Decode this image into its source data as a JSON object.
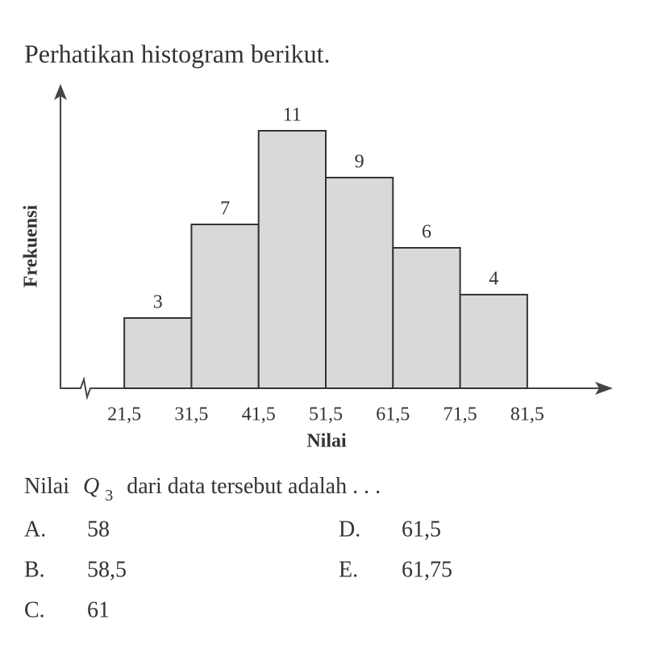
{
  "intro": "Perhatikan histogram berikut.",
  "chart_data": {
    "type": "histogram",
    "xlabel": "Nilai",
    "ylabel": "Frekuensi",
    "bins": [
      21.5,
      31.5,
      41.5,
      51.5,
      61.5,
      71.5,
      81.5
    ],
    "values": [
      3,
      7,
      11,
      9,
      6,
      4
    ],
    "color": "#d9d9d9",
    "xlim": [
      12,
      94
    ],
    "ylim": [
      0,
      13
    ],
    "xticks": [
      {
        "value": 21.5,
        "label": "21,5"
      },
      {
        "value": 31.5,
        "label": "31,5"
      },
      {
        "value": 41.5,
        "label": "41,5"
      },
      {
        "value": 51.5,
        "label": "51,5"
      },
      {
        "value": 61.5,
        "label": "61,5"
      },
      {
        "value": 71.5,
        "label": "71,5"
      },
      {
        "value": 81.5,
        "label": "81,5"
      }
    ]
  },
  "question": {
    "before": "Nilai",
    "var": "Q",
    "sub": "3",
    "after": "dari data tersebut adalah . . ."
  },
  "options": [
    {
      "letter": "A.",
      "text": "58"
    },
    {
      "letter": "B.",
      "text": "58,5"
    },
    {
      "letter": "C.",
      "text": "61"
    },
    {
      "letter": "D.",
      "text": "61,5"
    },
    {
      "letter": "E.",
      "text": "61,75"
    }
  ]
}
